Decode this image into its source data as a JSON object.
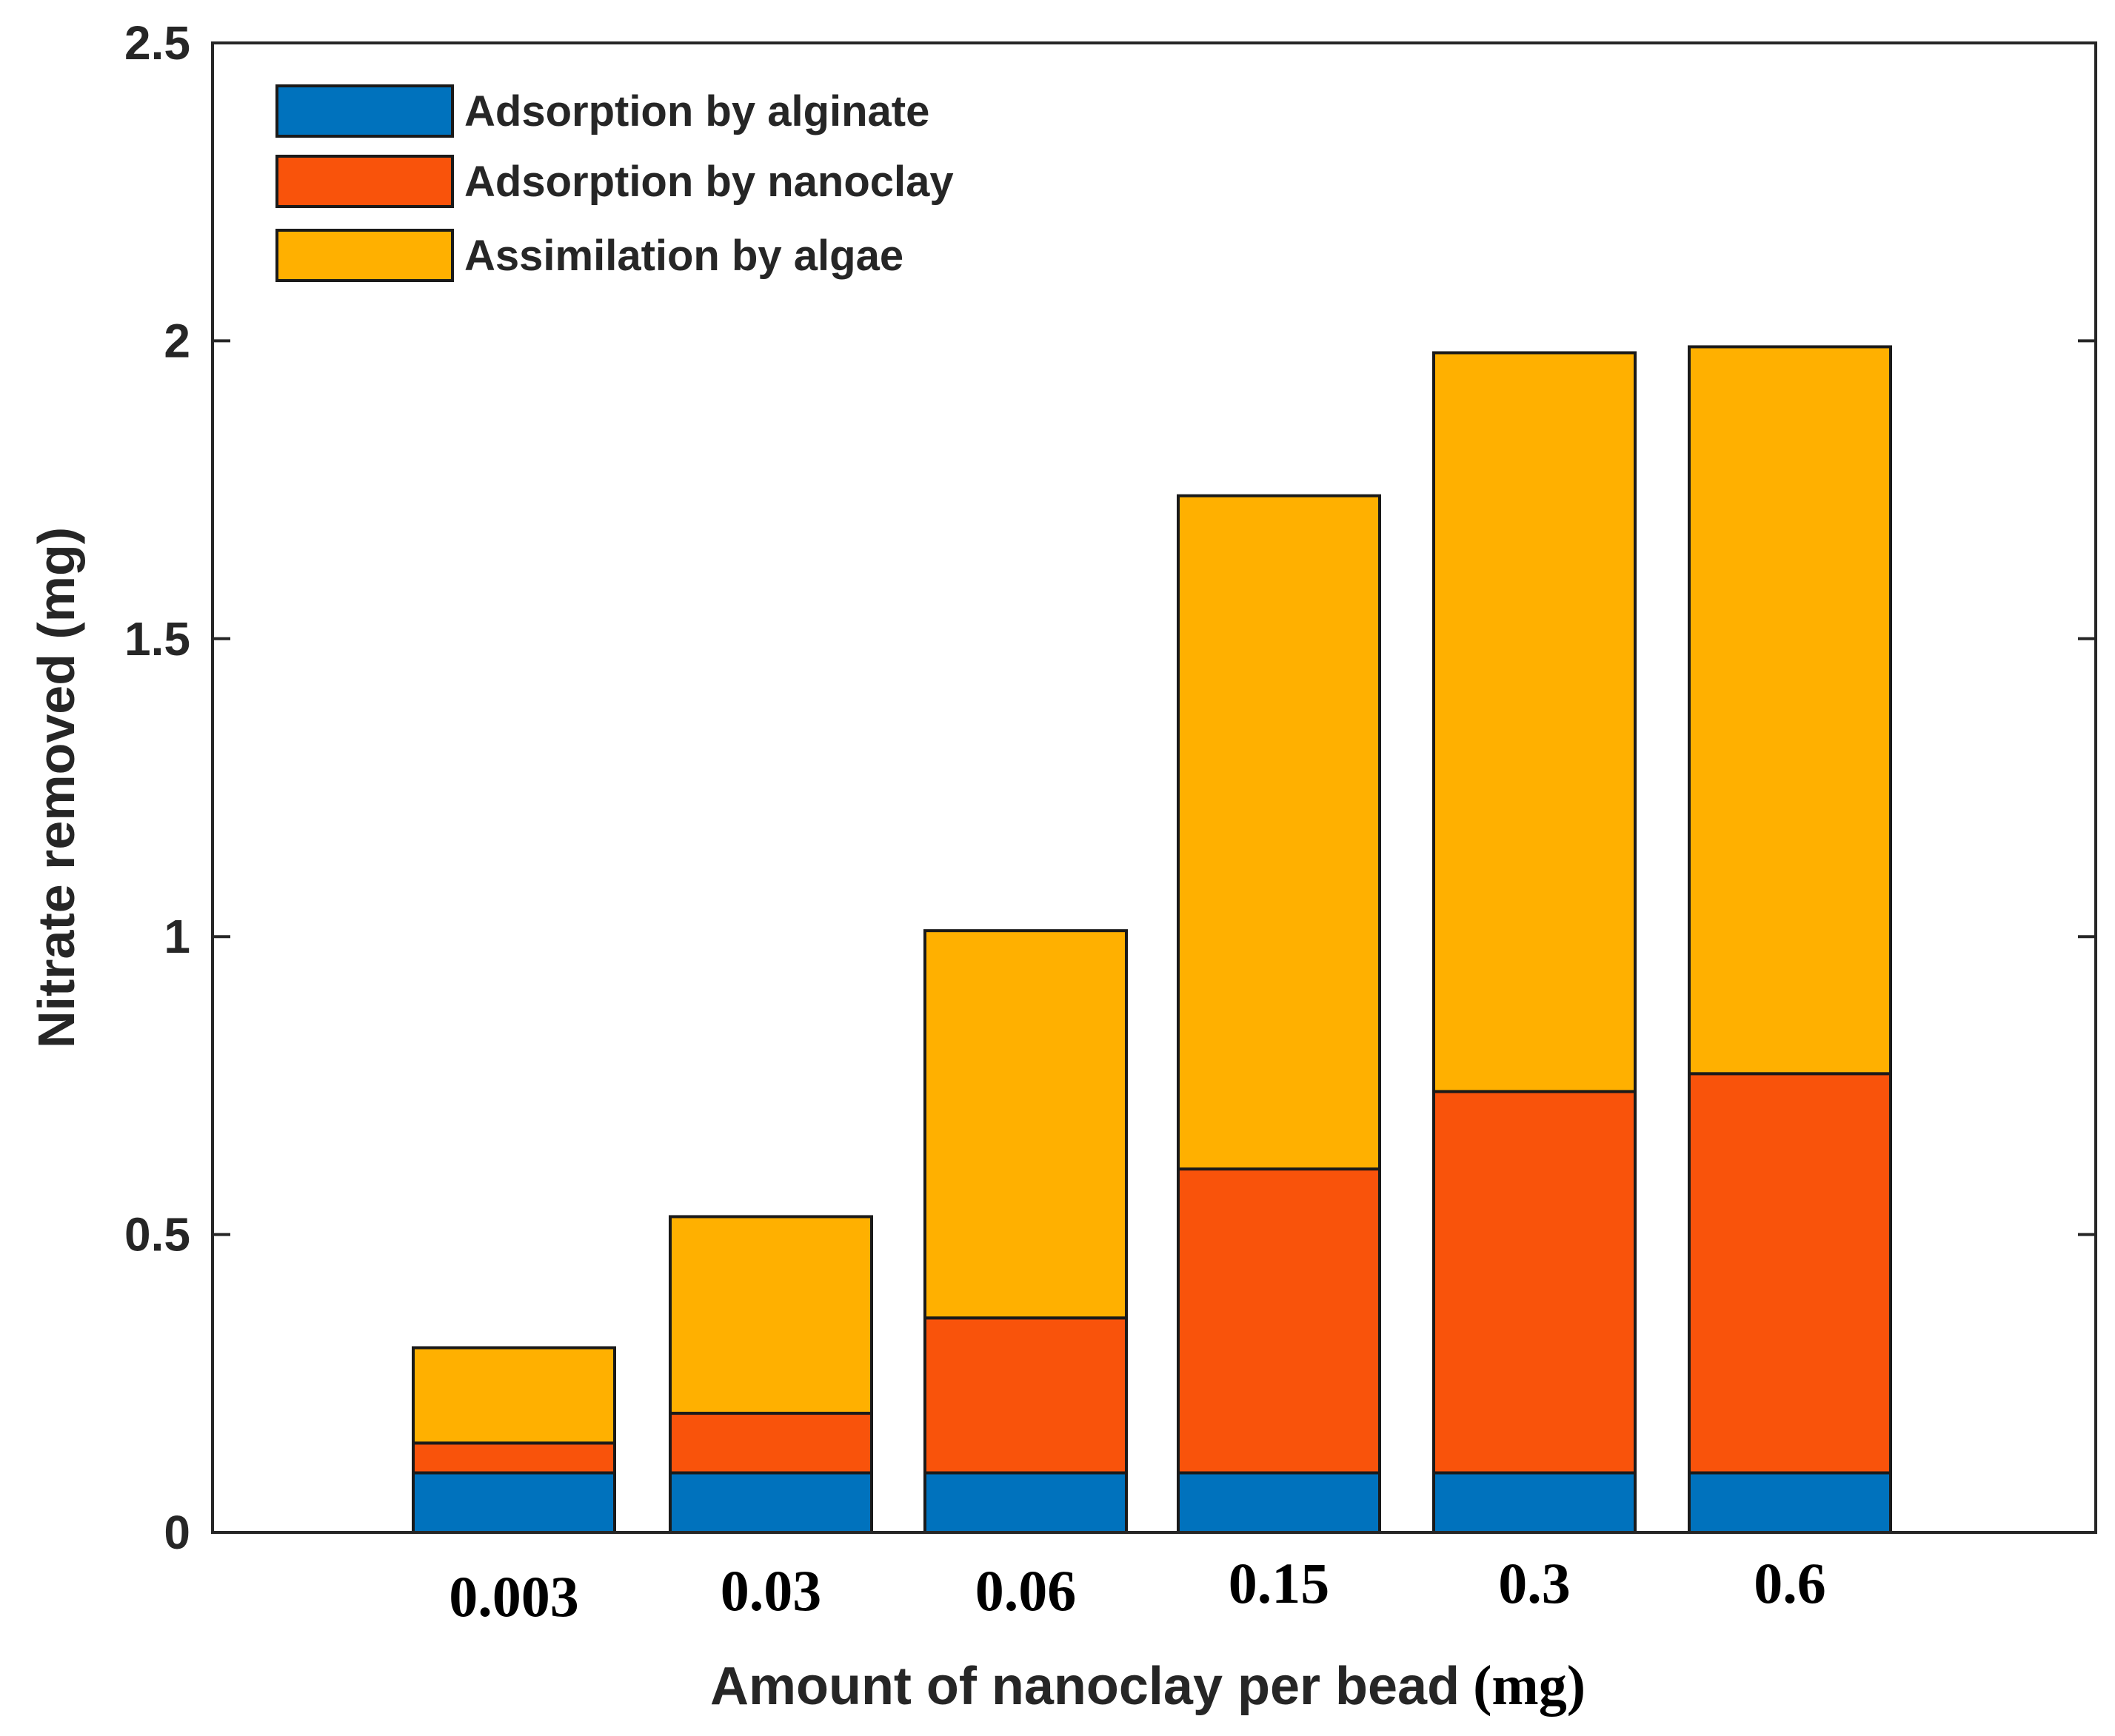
{
  "chart_data": {
    "type": "bar",
    "stacked": true,
    "categories": [
      "0.003",
      "0.03",
      "0.06",
      "0.15",
      "0.3",
      "0.6"
    ],
    "series": [
      {
        "name": "Adsorption by alginate",
        "color": "#0072BD",
        "values": [
          0.1,
          0.1,
          0.1,
          0.1,
          0.1,
          0.1
        ]
      },
      {
        "name": "Adsorption by nanoclay",
        "color": "#F9530B",
        "values": [
          0.05,
          0.1,
          0.26,
          0.51,
          0.64,
          0.67
        ]
      },
      {
        "name": "Assimilation by algae",
        "color": "#FFB000",
        "values": [
          0.16,
          0.33,
          0.65,
          1.13,
          1.24,
          1.22
        ]
      }
    ],
    "xlabel": "Amount of nanoclay per bead",
    "xlabel_unit": "(mg)",
    "ylabel": "Nitrate removed (mg)",
    "ylim": [
      0,
      2.5
    ],
    "yticks": [
      0,
      0.5,
      1,
      1.5,
      2,
      2.5
    ],
    "ytick_labels": [
      "0",
      "0.5",
      "1",
      "1.5",
      "2",
      "2.5"
    ],
    "legend_position": "top-left",
    "grid": false
  }
}
